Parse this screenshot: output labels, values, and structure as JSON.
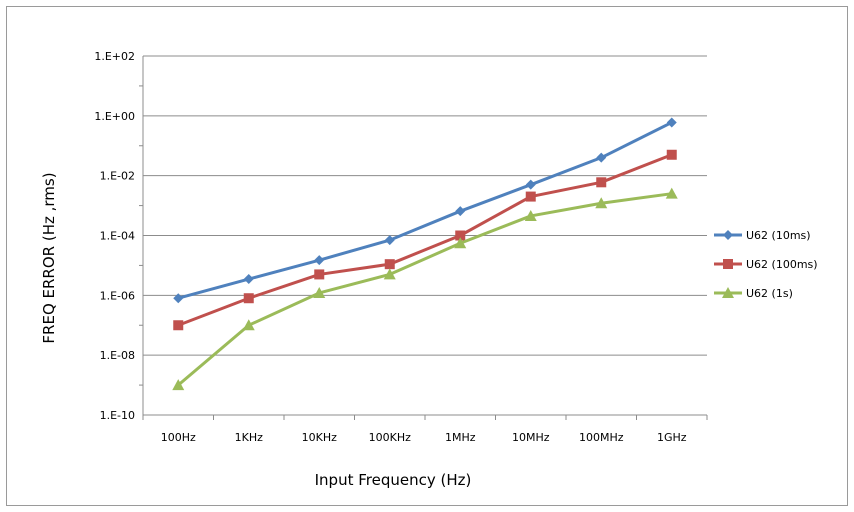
{
  "chart_data": {
    "type": "line",
    "y_scale": "log",
    "xlabel": "Input Frequency (Hz)",
    "ylabel": "FREQ ERROR (Hz ,rms)",
    "categories": [
      "100Hz",
      "1KHz",
      "10KHz",
      "100KHz",
      "1MHz",
      "10MHz",
      "100MHz",
      "1GHz"
    ],
    "ylim": [
      1e-10,
      100
    ],
    "y_ticks": [
      {
        "value": 100,
        "label": "1.E+02"
      },
      {
        "value": 1,
        "label": "1.E+00"
      },
      {
        "value": 0.01,
        "label": "1.E-02"
      },
      {
        "value": 0.0001,
        "label": "1.E-04"
      },
      {
        "value": 1e-06,
        "label": "1.E-06"
      },
      {
        "value": 1e-08,
        "label": "1.E-08"
      },
      {
        "value": 1e-10,
        "label": "1.E-10"
      }
    ],
    "grid": "horizontal",
    "legend_position": "right",
    "series": [
      {
        "name": "U62 (10ms)",
        "color": "#4F81BD",
        "marker": "diamond",
        "values": [
          8e-07,
          3.5e-06,
          1.5e-05,
          7e-05,
          0.00065,
          0.005,
          0.04,
          0.6
        ]
      },
      {
        "name": "U62 (100ms)",
        "color": "#C0504D",
        "marker": "square",
        "values": [
          1e-07,
          8e-07,
          5e-06,
          1.1e-05,
          0.0001,
          0.002,
          0.006,
          0.05
        ]
      },
      {
        "name": "U62 (1s)",
        "color": "#9BBB59",
        "marker": "triangle",
        "values": [
          1e-09,
          1e-07,
          1.2e-06,
          5e-06,
          5.5e-05,
          0.00045,
          0.0012,
          0.0025
        ]
      }
    ]
  }
}
